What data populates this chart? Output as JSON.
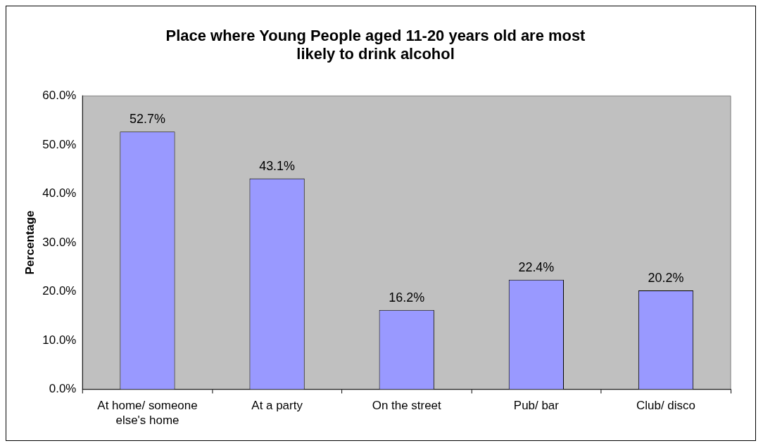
{
  "chart_data": {
    "type": "bar",
    "title": "Place where Young People aged 11-20 years old are most likely to drink alcohol",
    "ylabel": "Percentage",
    "categories": [
      "At home/ someone else's home",
      "At a party",
      "On the street",
      "Pub/ bar",
      "Club/ disco"
    ],
    "values": [
      52.7,
      43.1,
      16.2,
      22.4,
      20.2
    ],
    "value_labels": [
      "52.7%",
      "43.1%",
      "16.2%",
      "22.4%",
      "20.2%"
    ],
    "color": "#9999ff",
    "ylim": [
      0,
      60
    ],
    "yticks": [
      {
        "value": 0,
        "label": "0.0%"
      },
      {
        "value": 10,
        "label": "10.0%"
      },
      {
        "value": 20,
        "label": "20.0%"
      },
      {
        "value": 30,
        "label": "30.0%"
      },
      {
        "value": 40,
        "label": "40.0%"
      },
      {
        "value": 50,
        "label": "50.0%"
      },
      {
        "value": 60,
        "label": "60.0%"
      }
    ],
    "grid": false,
    "legend": false
  }
}
